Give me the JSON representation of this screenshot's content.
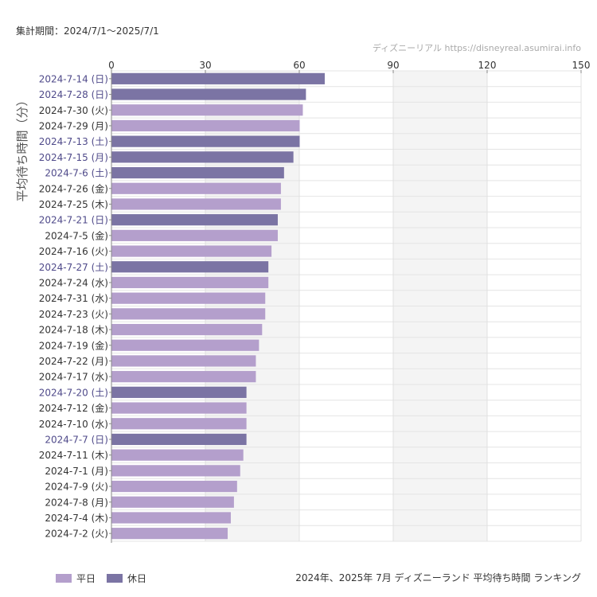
{
  "header": {
    "period": "集計期間：2024/7/1〜2025/7/1",
    "source": "ディズニーリアル https://disneyreal.asumirai.info"
  },
  "footer": {
    "title": "2024年、2025年 7月 ディズニーランド 平均待ち時間 ランキング"
  },
  "legend": [
    {
      "label": "平日",
      "color": "#b49fcc"
    },
    {
      "label": "休日",
      "color": "#7b74a4"
    }
  ],
  "colors": {
    "weekday": "#b49fcc",
    "holiday": "#7b74a4",
    "holiday_label": "#4f4a8a",
    "weekday_label": "#333333"
  },
  "chart_data": {
    "type": "bar",
    "orientation": "horizontal",
    "ylabel": "平均待ち時間（分）",
    "xlim": [
      0,
      150
    ],
    "xticks": [
      0,
      30,
      60,
      90,
      120,
      150
    ],
    "grid": true,
    "legend_position": "bottom-left",
    "categories": [
      "2024-7-14 (日)",
      "2024-7-28 (日)",
      "2024-7-30 (火)",
      "2024-7-29 (月)",
      "2024-7-13 (土)",
      "2024-7-15 (月)",
      "2024-7-6 (土)",
      "2024-7-26 (金)",
      "2024-7-25 (木)",
      "2024-7-21 (日)",
      "2024-7-5 (金)",
      "2024-7-16 (火)",
      "2024-7-27 (土)",
      "2024-7-24 (水)",
      "2024-7-31 (水)",
      "2024-7-23 (火)",
      "2024-7-18 (木)",
      "2024-7-19 (金)",
      "2024-7-22 (月)",
      "2024-7-17 (水)",
      "2024-7-20 (土)",
      "2024-7-12 (金)",
      "2024-7-10 (水)",
      "2024-7-7 (日)",
      "2024-7-11 (木)",
      "2024-7-1 (月)",
      "2024-7-9 (火)",
      "2024-7-8 (月)",
      "2024-7-4 (木)",
      "2024-7-2 (火)"
    ],
    "values": [
      68,
      62,
      61,
      60,
      60,
      58,
      55,
      54,
      54,
      53,
      53,
      51,
      50,
      50,
      49,
      49,
      48,
      47,
      46,
      46,
      43,
      43,
      43,
      43,
      42,
      41,
      40,
      39,
      38,
      37
    ],
    "day_type": [
      "休日",
      "休日",
      "平日",
      "平日",
      "休日",
      "休日",
      "休日",
      "平日",
      "平日",
      "休日",
      "平日",
      "平日",
      "休日",
      "平日",
      "平日",
      "平日",
      "平日",
      "平日",
      "平日",
      "平日",
      "休日",
      "平日",
      "平日",
      "休日",
      "平日",
      "平日",
      "平日",
      "平日",
      "平日",
      "平日"
    ]
  }
}
